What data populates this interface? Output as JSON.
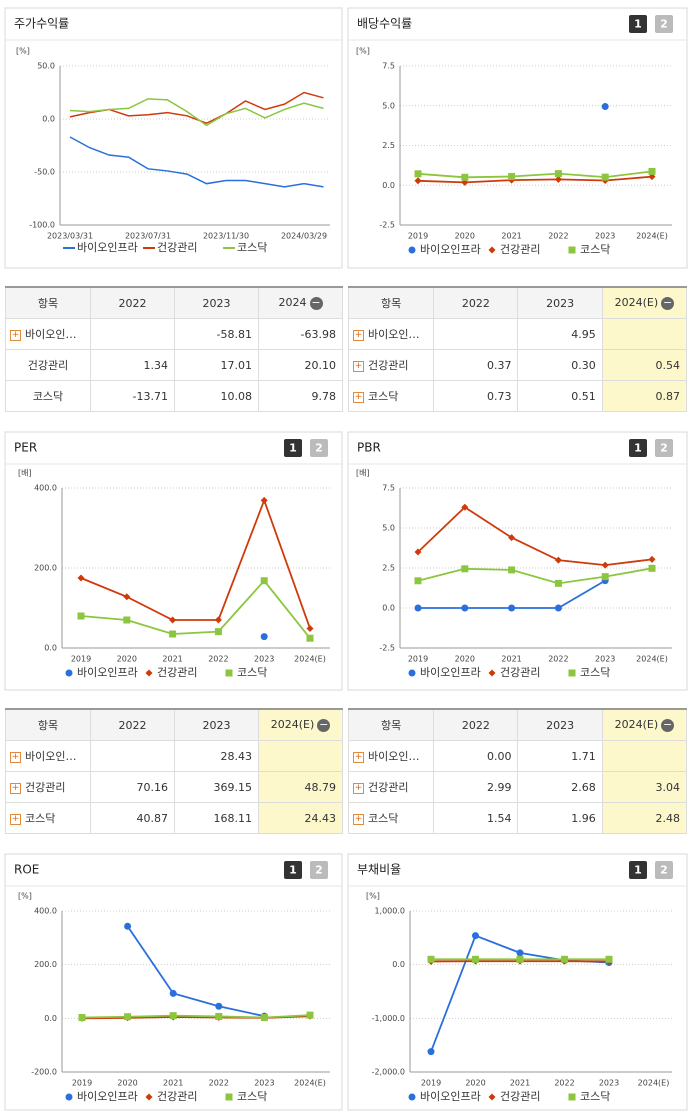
{
  "chart_data": [
    {
      "type": "line",
      "title": "주가수익률",
      "y_unit": "[%]",
      "markers": false,
      "categories": [
        "2023/03/31",
        null,
        null,
        null,
        "2023/07/31",
        null,
        null,
        null,
        "2023/11/30",
        null,
        null,
        null,
        "2024/03/29",
        null
      ],
      "ylim": [
        -100,
        50
      ],
      "yticks": [
        {
          "value": 50,
          "label": "50.0"
        },
        {
          "value": 0,
          "label": "0.0"
        },
        {
          "value": -50,
          "label": "-50.0"
        },
        {
          "value": -100,
          "label": "-100.0"
        }
      ],
      "series": [
        {
          "name": "바이오인프라",
          "color": "#2a6fdb",
          "values": [
            -17,
            -27,
            -34,
            -36,
            -47,
            -49,
            -52,
            -61,
            -58,
            -58,
            -61,
            -64,
            -61,
            -64
          ]
        },
        {
          "name": "건강관리",
          "color": "#d03a0b",
          "values": [
            2,
            6,
            9,
            3,
            4,
            6,
            3,
            -4,
            5,
            17,
            9,
            14,
            25,
            20
          ]
        },
        {
          "name": "코스닥",
          "color": "#8cc63f",
          "values": [
            8,
            7,
            9,
            10,
            19,
            18,
            7,
            -6,
            5,
            10,
            1,
            9,
            15,
            10
          ]
        }
      ]
    },
    {
      "type": "line",
      "title": "배당수익률",
      "y_unit": "[%]",
      "buttons": [
        "1",
        "2"
      ],
      "markers": true,
      "categories": [
        "2019",
        "2020",
        "2021",
        "2022",
        "2023",
        "2024(E)"
      ],
      "ylim": [
        -2.5,
        7.5
      ],
      "yticks": [
        {
          "value": 7.5,
          "label": "7.5"
        },
        {
          "value": 5,
          "label": "5.0"
        },
        {
          "value": 2.5,
          "label": "2.5"
        },
        {
          "value": 0,
          "label": "0.0"
        },
        {
          "value": -2.5,
          "label": "-2.5"
        }
      ],
      "series": [
        {
          "name": "바이오인프라",
          "color": "#2a6fdb",
          "values": [
            null,
            null,
            null,
            null,
            4.95,
            null
          ]
        },
        {
          "name": "건강관리",
          "color": "#d03a0b",
          "values": [
            0.28,
            0.18,
            0.32,
            0.37,
            0.3,
            0.54
          ]
        },
        {
          "name": "코스닥",
          "color": "#8cc63f",
          "values": [
            0.72,
            0.5,
            0.55,
            0.73,
            0.51,
            0.87
          ]
        }
      ]
    },
    {
      "type": "line",
      "title": "PER",
      "y_unit": "[배]",
      "buttons": [
        "1",
        "2"
      ],
      "markers": true,
      "categories": [
        "2019",
        "2020",
        "2021",
        "2022",
        "2023",
        "2024(E)"
      ],
      "ylim": [
        0,
        400
      ],
      "yticks": [
        {
          "value": 400,
          "label": "400.0"
        },
        {
          "value": 200,
          "label": "200.0"
        },
        {
          "value": 0,
          "label": "0.0"
        }
      ],
      "series": [
        {
          "name": "바이오인프라",
          "color": "#2a6fdb",
          "values": [
            null,
            null,
            null,
            null,
            28.43,
            null
          ]
        },
        {
          "name": "건강관리",
          "color": "#d03a0b",
          "values": [
            175,
            128,
            70,
            70.16,
            369.15,
            48.79
          ]
        },
        {
          "name": "코스닥",
          "color": "#8cc63f",
          "values": [
            80,
            70,
            35,
            40.87,
            168.11,
            24.43
          ]
        }
      ]
    },
    {
      "type": "line",
      "title": "PBR",
      "y_unit": "[배]",
      "buttons": [
        "1",
        "2"
      ],
      "markers": true,
      "categories": [
        "2019",
        "2020",
        "2021",
        "2022",
        "2023",
        "2024(E)"
      ],
      "ylim": [
        -2.5,
        7.5
      ],
      "yticks": [
        {
          "value": 7.5,
          "label": "7.5"
        },
        {
          "value": 5,
          "label": "5.0"
        },
        {
          "value": 2.5,
          "label": "2.5"
        },
        {
          "value": 0,
          "label": "0.0"
        },
        {
          "value": -2.5,
          "label": "-2.5"
        }
      ],
      "series": [
        {
          "name": "바이오인프라",
          "color": "#2a6fdb",
          "values": [
            0,
            0,
            0,
            0,
            1.71,
            null
          ]
        },
        {
          "name": "건강관리",
          "color": "#d03a0b",
          "values": [
            3.5,
            6.3,
            4.4,
            2.99,
            2.68,
            3.04
          ]
        },
        {
          "name": "코스닥",
          "color": "#8cc63f",
          "values": [
            1.7,
            2.45,
            2.38,
            1.54,
            1.96,
            2.48
          ]
        }
      ]
    },
    {
      "type": "line",
      "title": "ROE",
      "y_unit": "[%]",
      "buttons": [
        "1",
        "2"
      ],
      "markers": true,
      "categories": [
        "2019",
        "2020",
        "2021",
        "2022",
        "2023",
        "2024(E)"
      ],
      "ylim": [
        -200,
        400
      ],
      "yticks": [
        {
          "value": 400,
          "label": "400.0"
        },
        {
          "value": 200,
          "label": "200.0"
        },
        {
          "value": 0,
          "label": "0.0"
        },
        {
          "value": -200,
          "label": "-200.0"
        }
      ],
      "series": [
        {
          "name": "바이오인프라",
          "color": "#2a6fdb",
          "values": [
            null,
            343,
            93,
            45,
            8,
            null
          ]
        },
        {
          "name": "건강관리",
          "color": "#d03a0b",
          "values": [
            0,
            2,
            5,
            3,
            2,
            8
          ]
        },
        {
          "name": "코스닥",
          "color": "#8cc63f",
          "values": [
            3,
            6,
            10,
            7,
            3,
            12
          ]
        }
      ]
    },
    {
      "type": "line",
      "title": "부채비율",
      "y_unit": "[%]",
      "buttons": [
        "1",
        "2"
      ],
      "markers": true,
      "categories": [
        "2019",
        "2020",
        "2021",
        "2022",
        "2023",
        "2024(E)"
      ],
      "ylim": [
        -2000,
        1000
      ],
      "yticks": [
        {
          "value": 1000,
          "label": "1,000.0"
        },
        {
          "value": 0,
          "label": "0.0"
        },
        {
          "value": -1000,
          "label": "-1,000.0"
        },
        {
          "value": -2000,
          "label": "-2,000.0"
        }
      ],
      "series": [
        {
          "name": "바이오인프라",
          "color": "#2a6fdb",
          "values": [
            -1620,
            540,
            220,
            80,
            40,
            null
          ]
        },
        {
          "name": "건강관리",
          "color": "#d03a0b",
          "values": [
            60,
            65,
            65,
            65,
            60,
            null
          ]
        },
        {
          "name": "코스닥",
          "color": "#8cc63f",
          "values": [
            100,
            100,
            100,
            100,
            100,
            null
          ]
        }
      ]
    }
  ],
  "tables": [
    {
      "header": [
        "항목",
        "2022",
        "2023",
        "2024"
      ],
      "highlight_last": false,
      "expandable": [
        true,
        false,
        false
      ],
      "rows": [
        [
          "바이오인…",
          null,
          "-58.81",
          "-63.98"
        ],
        [
          "건강관리",
          "1.34",
          "17.01",
          "20.10"
        ],
        [
          "코스닥",
          "-13.71",
          "10.08",
          "9.78"
        ]
      ]
    },
    {
      "header": [
        "항목",
        "2022",
        "2023",
        "2024(E)"
      ],
      "highlight_last": true,
      "expandable": [
        true,
        true,
        true
      ],
      "rows": [
        [
          "바이오인…",
          null,
          "4.95",
          null
        ],
        [
          "건강관리",
          "0.37",
          "0.30",
          "0.54"
        ],
        [
          "코스닥",
          "0.73",
          "0.51",
          "0.87"
        ]
      ]
    },
    {
      "header": [
        "항목",
        "2022",
        "2023",
        "2024(E)"
      ],
      "highlight_last": true,
      "expandable": [
        true,
        true,
        true
      ],
      "rows": [
        [
          "바이오인…",
          null,
          "28.43",
          null
        ],
        [
          "건강관리",
          "70.16",
          "369.15",
          "48.79"
        ],
        [
          "코스닥",
          "40.87",
          "168.11",
          "24.43"
        ]
      ]
    },
    {
      "header": [
        "항목",
        "2022",
        "2023",
        "2024(E)"
      ],
      "highlight_last": true,
      "expandable": [
        true,
        true,
        true
      ],
      "rows": [
        [
          "바이오인…",
          "0.00",
          "1.71",
          null
        ],
        [
          "건강관리",
          "2.99",
          "2.68",
          "3.04"
        ],
        [
          "코스닥",
          "1.54",
          "1.96",
          "2.48"
        ]
      ]
    }
  ]
}
